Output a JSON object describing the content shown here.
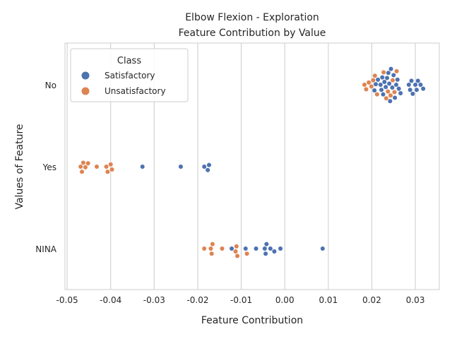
{
  "chart_data": {
    "type": "scatter",
    "subtype": "swarm",
    "title": "Elbow Flexion - Exploration",
    "subtitle": "Feature Contribution by Value",
    "xlabel": "Feature Contribution",
    "ylabel": "Values of Feature",
    "xlim": [
      -0.0505,
      0.0355
    ],
    "x_ticks": [
      "-0.05",
      "-0.04",
      "-0.03",
      "-0.02",
      "-0.01",
      "0.00",
      "0.01",
      "0.02",
      "0.03"
    ],
    "x_tick_values": [
      -0.05,
      -0.04,
      -0.03,
      -0.02,
      -0.01,
      0.0,
      0.01,
      0.02,
      0.03
    ],
    "categories": [
      "No",
      "Yes",
      "NINA"
    ],
    "grid": "vertical",
    "legend": {
      "title": "Class",
      "position": "top-left"
    },
    "series": [
      {
        "name": "Satisfactory",
        "color": "#4c72b0",
        "points": [
          {
            "cat": "No",
            "x": 0.0206
          },
          {
            "cat": "No",
            "x": 0.0209
          },
          {
            "cat": "No",
            "x": 0.0214
          },
          {
            "cat": "No",
            "x": 0.022
          },
          {
            "cat": "No",
            "x": 0.0222
          },
          {
            "cat": "No",
            "x": 0.0224
          },
          {
            "cat": "No",
            "x": 0.0226
          },
          {
            "cat": "No",
            "x": 0.0229
          },
          {
            "cat": "No",
            "x": 0.0232
          },
          {
            "cat": "No",
            "x": 0.0235
          },
          {
            "cat": "No",
            "x": 0.0238
          },
          {
            "cat": "No",
            "x": 0.024
          },
          {
            "cat": "No",
            "x": 0.0242
          },
          {
            "cat": "No",
            "x": 0.0244
          },
          {
            "cat": "No",
            "x": 0.0247
          },
          {
            "cat": "No",
            "x": 0.025
          },
          {
            "cat": "No",
            "x": 0.0253
          },
          {
            "cat": "No",
            "x": 0.0256
          },
          {
            "cat": "No",
            "x": 0.0259
          },
          {
            "cat": "No",
            "x": 0.0262
          },
          {
            "cat": "No",
            "x": 0.0266
          },
          {
            "cat": "No",
            "x": 0.0285
          },
          {
            "cat": "No",
            "x": 0.0288
          },
          {
            "cat": "No",
            "x": 0.0291
          },
          {
            "cat": "No",
            "x": 0.0294
          },
          {
            "cat": "No",
            "x": 0.03
          },
          {
            "cat": "No",
            "x": 0.0303
          },
          {
            "cat": "No",
            "x": 0.0306
          },
          {
            "cat": "No",
            "x": 0.0312
          },
          {
            "cat": "No",
            "x": 0.0318
          },
          {
            "cat": "Yes",
            "x": -0.0327
          },
          {
            "cat": "Yes",
            "x": -0.0239
          },
          {
            "cat": "Yes",
            "x": -0.0185
          },
          {
            "cat": "Yes",
            "x": -0.0177
          },
          {
            "cat": "Yes",
            "x": -0.0174
          },
          {
            "cat": "NINA",
            "x": -0.0122
          },
          {
            "cat": "NINA",
            "x": -0.009
          },
          {
            "cat": "NINA",
            "x": -0.0066
          },
          {
            "cat": "NINA",
            "x": -0.0046
          },
          {
            "cat": "NINA",
            "x": -0.0044
          },
          {
            "cat": "NINA",
            "x": -0.0042
          },
          {
            "cat": "NINA",
            "x": -0.0033
          },
          {
            "cat": "NINA",
            "x": -0.0024
          },
          {
            "cat": "NINA",
            "x": -0.001
          },
          {
            "cat": "NINA",
            "x": 0.0087
          }
        ]
      },
      {
        "name": "Unsatisfactory",
        "color": "#dd8452",
        "points": [
          {
            "cat": "No",
            "x": 0.0183
          },
          {
            "cat": "No",
            "x": 0.0187
          },
          {
            "cat": "No",
            "x": 0.0193
          },
          {
            "cat": "No",
            "x": 0.0199
          },
          {
            "cat": "No",
            "x": 0.0203
          },
          {
            "cat": "No",
            "x": 0.0207
          },
          {
            "cat": "No",
            "x": 0.0212
          },
          {
            "cat": "No",
            "x": 0.0227
          },
          {
            "cat": "No",
            "x": 0.0233
          },
          {
            "cat": "No",
            "x": 0.0237
          },
          {
            "cat": "No",
            "x": 0.0243
          },
          {
            "cat": "No",
            "x": 0.0248
          },
          {
            "cat": "No",
            "x": 0.0252
          },
          {
            "cat": "No",
            "x": 0.0257
          },
          {
            "cat": "Yes",
            "x": -0.0469
          },
          {
            "cat": "Yes",
            "x": -0.0466
          },
          {
            "cat": "Yes",
            "x": -0.0463
          },
          {
            "cat": "Yes",
            "x": -0.0458
          },
          {
            "cat": "Yes",
            "x": -0.0452
          },
          {
            "cat": "Yes",
            "x": -0.0432
          },
          {
            "cat": "Yes",
            "x": -0.041
          },
          {
            "cat": "Yes",
            "x": -0.0407
          },
          {
            "cat": "Yes",
            "x": -0.04
          },
          {
            "cat": "Yes",
            "x": -0.0397
          },
          {
            "cat": "NINA",
            "x": -0.0185
          },
          {
            "cat": "NINA",
            "x": -0.017
          },
          {
            "cat": "NINA",
            "x": -0.0168
          },
          {
            "cat": "NINA",
            "x": -0.0166
          },
          {
            "cat": "NINA",
            "x": -0.0144
          },
          {
            "cat": "NINA",
            "x": -0.0113
          },
          {
            "cat": "NINA",
            "x": -0.0111
          },
          {
            "cat": "NINA",
            "x": -0.0109
          },
          {
            "cat": "NINA",
            "x": -0.0087
          }
        ]
      }
    ]
  }
}
